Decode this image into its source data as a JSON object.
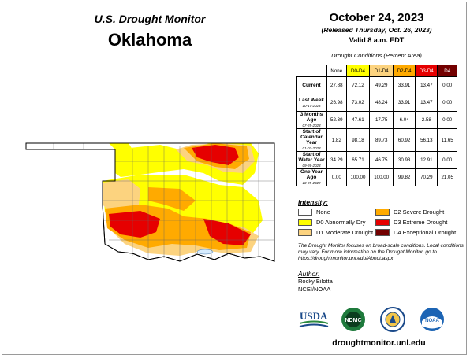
{
  "header": {
    "subtitle": "U.S. Drought Monitor",
    "state": "Oklahoma"
  },
  "info": {
    "date": "October 24, 2023",
    "released": "(Released Thursday, Oct. 26, 2023)",
    "valid": "Valid 8 a.m. EDT"
  },
  "table": {
    "title": "Drought Conditions (Percent Area)",
    "columns": [
      "None",
      "D0-D4",
      "D1-D4",
      "D2-D4",
      "D3-D4",
      "D4"
    ],
    "column_colors": [
      "#ffffff",
      "#ffff00",
      "#fcd37f",
      "#ffaa00",
      "#e60000",
      "#730000"
    ],
    "rows": [
      {
        "label": "Current",
        "date": "",
        "values": [
          "27.88",
          "72.12",
          "49.29",
          "33.91",
          "13.47",
          "0.00"
        ]
      },
      {
        "label": "Last Week",
        "date": "10-17-2023",
        "values": [
          "26.98",
          "73.02",
          "48.24",
          "33.91",
          "13.47",
          "0.00"
        ]
      },
      {
        "label": "3 Months Ago",
        "date": "07-25-2023",
        "values": [
          "52.39",
          "47.61",
          "17.75",
          "6.04",
          "2.58",
          "0.00"
        ]
      },
      {
        "label": "Start of Calendar Year",
        "date": "01-03-2023",
        "values": [
          "1.82",
          "98.18",
          "89.73",
          "60.92",
          "56.13",
          "11.65"
        ]
      },
      {
        "label": "Start of Water Year",
        "date": "09-26-2023",
        "values": [
          "34.29",
          "65.71",
          "46.75",
          "30.93",
          "12.91",
          "0.00"
        ]
      },
      {
        "label": "One Year Ago",
        "date": "10-25-2022",
        "values": [
          "0.00",
          "100.00",
          "100.00",
          "99.82",
          "70.29",
          "21.05"
        ]
      }
    ]
  },
  "legend": {
    "title": "Intensity:",
    "items": [
      {
        "label": "None",
        "color": "#ffffff"
      },
      {
        "label": "D2 Severe Drought",
        "color": "#ffaa00"
      },
      {
        "label": "D0 Abnormally Dry",
        "color": "#ffff00"
      },
      {
        "label": "D3 Extreme Drought",
        "color": "#e60000"
      },
      {
        "label": "D1 Moderate Drought",
        "color": "#fcd37f"
      },
      {
        "label": "D4 Exceptional Drought",
        "color": "#730000"
      }
    ]
  },
  "note": "The Drought Monitor focuses on broad-scale conditions. Local conditions may vary. For more information on the Drought Monitor, go to https://droughtmonitor.unl.edu/About.aspx",
  "author": {
    "heading": "Author:",
    "name": "Rocky Bilotta",
    "org": "NCEI/NOAA"
  },
  "logos": {
    "usda": "USDA",
    "ndmc": "NDMC",
    "noaa": "NOAA"
  },
  "url": "droughtmonitor.unl.edu",
  "map_colors": {
    "none": "#ffffff",
    "d0": "#ffff00",
    "d1": "#fcd37f",
    "d2": "#ffaa00",
    "d3": "#e60000",
    "water": "#d6ecff"
  }
}
